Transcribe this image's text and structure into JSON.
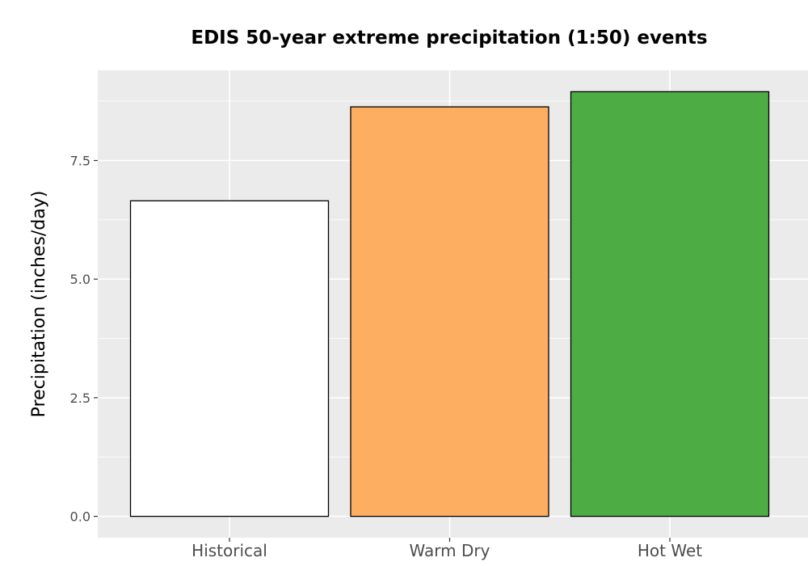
{
  "chart_data": {
    "type": "bar",
    "title": "EDIS 50-year extreme precipitation (1:50) events",
    "xlabel": "",
    "ylabel": "Precipitation (inches/day)",
    "categories": [
      "Historical",
      "Warm Dry",
      "Hot Wet"
    ],
    "values": [
      6.65,
      8.63,
      8.95
    ],
    "colors": [
      "#ffffff",
      "#fdae61",
      "#4dac43"
    ],
    "ylim": [
      -0.45,
      9.4
    ],
    "yticks": [
      0.0,
      2.5,
      5.0,
      7.5
    ],
    "ytick_labels": [
      "0.0",
      "2.5",
      "5.0",
      "7.5"
    ],
    "panel_background": "#ebebeb",
    "grid": true,
    "grid_color": "#ffffff",
    "bar_outline": "#000000",
    "legend": "none"
  }
}
